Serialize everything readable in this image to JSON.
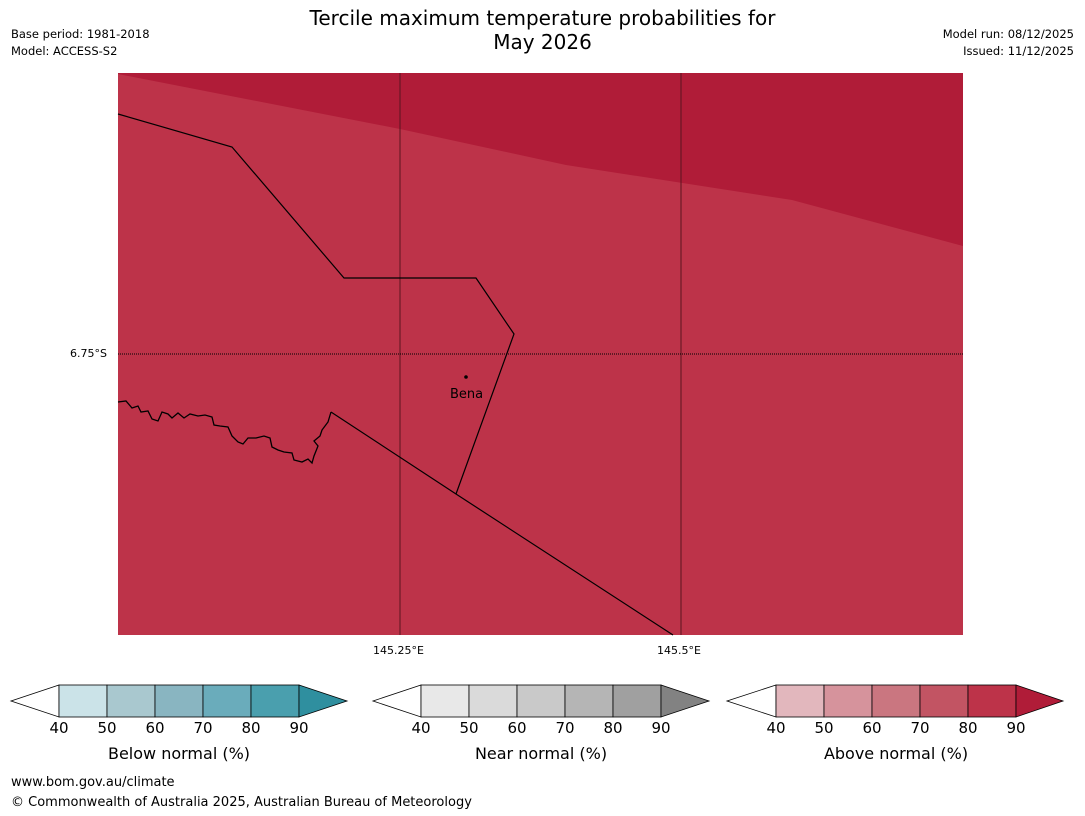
{
  "title_line1": "Tercile maximum temperature probabilities for",
  "title_line2": "May 2026",
  "base_period": "Base period: 1981-2018",
  "model": "Model: ACCESS-S2",
  "model_run": "Model run: 08/12/2025",
  "issued": "Issued: 11/12/2025",
  "map": {
    "lat_label": "6.75°S",
    "lon_labels": [
      "145.25°E",
      "145.5°E"
    ],
    "place": "Bena",
    "colors": {
      "above_80": "#bd3349",
      "above_90": "#b01c38",
      "outline": "#000000"
    }
  },
  "colorbars": [
    {
      "label": "Below normal (%)",
      "ticks": [
        "40",
        "50",
        "60",
        "70",
        "80",
        "90"
      ],
      "colors": [
        "#ffffff",
        "#cbe3e8",
        "#a9c8cf",
        "#89b5c1",
        "#6aacbb",
        "#4a9fae",
        "#2f8f9f"
      ]
    },
    {
      "label": "Near normal (%)",
      "ticks": [
        "40",
        "50",
        "60",
        "70",
        "80",
        "90"
      ],
      "colors": [
        "#ffffff",
        "#e8e8e8",
        "#dadada",
        "#c9c9c9",
        "#b5b5b5",
        "#a0a0a0",
        "#828282"
      ]
    },
    {
      "label": "Above normal (%)",
      "ticks": [
        "40",
        "50",
        "60",
        "70",
        "80",
        "90"
      ],
      "colors": [
        "#ffffff",
        "#e2b7bd",
        "#d6939c",
        "#ca7680",
        "#c25463",
        "#bd3349",
        "#b01c38"
      ]
    }
  ],
  "footer_url": "www.bom.gov.au/climate",
  "footer_copyright": "© Commonwealth of Australia 2025, Australian Bureau of Meteorology"
}
